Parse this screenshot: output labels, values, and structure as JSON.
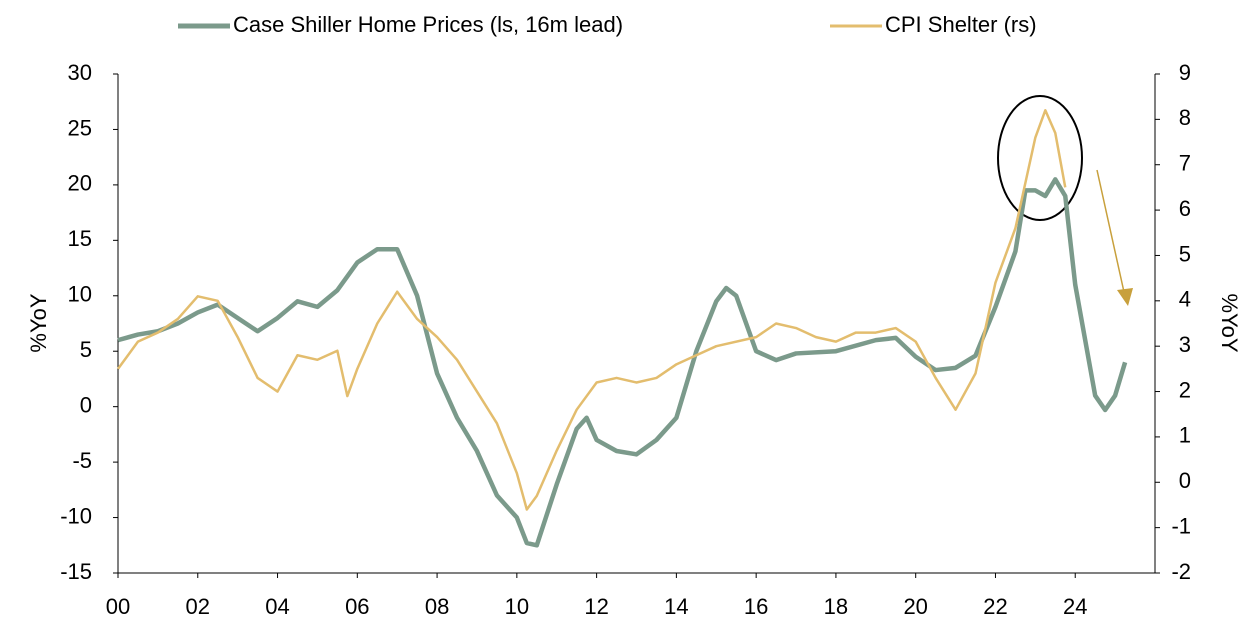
{
  "chart_data": {
    "type": "line",
    "y_label": "%YoY",
    "y2_label": "%YoY",
    "xlim": [
      2000,
      2026
    ],
    "xticks": [
      {
        "value": 2000,
        "label": "00"
      },
      {
        "value": 2002,
        "label": "02"
      },
      {
        "value": 2004,
        "label": "04"
      },
      {
        "value": 2006,
        "label": "06"
      },
      {
        "value": 2008,
        "label": "08"
      },
      {
        "value": 2010,
        "label": "10"
      },
      {
        "value": 2012,
        "label": "12"
      },
      {
        "value": 2014,
        "label": "14"
      },
      {
        "value": 2016,
        "label": "16"
      },
      {
        "value": 2018,
        "label": "18"
      },
      {
        "value": 2020,
        "label": "20"
      },
      {
        "value": 2022,
        "label": "22"
      },
      {
        "value": 2024,
        "label": "24"
      }
    ],
    "ylim": [
      -15,
      30
    ],
    "yticks": [
      -15,
      -10,
      -5,
      0,
      5,
      10,
      15,
      20,
      25,
      30
    ],
    "y2lim": [
      -2,
      9
    ],
    "y2ticks": [
      -2,
      -1,
      0,
      1,
      2,
      3,
      4,
      5,
      6,
      7,
      8,
      9
    ],
    "grid": false,
    "legend": "top",
    "series": [
      {
        "name": "Case Shiller Home Prices (ls, 16m lead)",
        "color": "#7b9a8b",
        "axis": "y",
        "x": [
          2000,
          2000.5,
          2001,
          2001.5,
          2002,
          2002.5,
          2003,
          2003.5,
          2004,
          2004.5,
          2005,
          2005.5,
          2006,
          2006.5,
          2007,
          2007.5,
          2008,
          2008.5,
          2009,
          2009.5,
          2010,
          2010.25,
          2010.5,
          2011,
          2011.5,
          2011.75,
          2012,
          2012.5,
          2013,
          2013.5,
          2014,
          2014.5,
          2015,
          2015.25,
          2015.5,
          2016,
          2016.5,
          2017,
          2018,
          2019,
          2019.5,
          2020,
          2020.5,
          2021,
          2021.5,
          2022,
          2022.5,
          2022.75,
          2023,
          2023.25,
          2023.5,
          2023.75,
          2024,
          2024.5,
          2024.75,
          2025,
          2025.25
        ],
        "values": [
          6,
          6.5,
          6.8,
          7.5,
          8.5,
          9.2,
          8,
          6.8,
          8,
          9.5,
          9,
          10.5,
          13,
          14.2,
          14.2,
          10,
          3,
          -1,
          -4,
          -8,
          -10,
          -12.3,
          -12.5,
          -7,
          -2,
          -1,
          -3,
          -4,
          -4.3,
          -3,
          -1,
          5,
          9.5,
          10.7,
          10,
          5,
          4.2,
          4.8,
          5,
          6,
          6.2,
          4.5,
          3.3,
          3.5,
          4.6,
          9,
          14,
          19.5,
          19.5,
          19,
          20.5,
          19,
          11,
          1,
          -0.3,
          1,
          4
        ]
      },
      {
        "name": "CPI Shelter (rs)",
        "color": "#e3bd6e",
        "axis": "y2",
        "x": [
          2000,
          2000.5,
          2001,
          2001.5,
          2002,
          2002.5,
          2003,
          2003.5,
          2004,
          2004.5,
          2005,
          2005.5,
          2005.75,
          2006,
          2006.5,
          2007,
          2007.5,
          2008,
          2008.5,
          2009,
          2009.5,
          2010,
          2010.25,
          2010.5,
          2011,
          2011.5,
          2012,
          2012.5,
          2013,
          2013.5,
          2014,
          2014.5,
          2015,
          2016,
          2016.5,
          2017,
          2017.5,
          2018,
          2018.5,
          2019,
          2019.5,
          2020,
          2020.5,
          2021,
          2021.5,
          2022,
          2022.5,
          2023,
          2023.25,
          2023.5,
          2023.75
        ],
        "values": [
          2.5,
          3.1,
          3.3,
          3.6,
          4.1,
          4,
          3.2,
          2.3,
          2,
          2.8,
          2.7,
          2.9,
          1.9,
          2.5,
          3.5,
          4.2,
          3.6,
          3.2,
          2.7,
          2,
          1.3,
          0.2,
          -0.6,
          -0.3,
          0.7,
          1.6,
          2.2,
          2.3,
          2.2,
          2.3,
          2.6,
          2.8,
          3,
          3.2,
          3.5,
          3.4,
          3.2,
          3.1,
          3.3,
          3.3,
          3.4,
          3.1,
          2.3,
          1.6,
          2.4,
          4.4,
          5.6,
          7.6,
          8.2,
          7.7,
          6.5
        ]
      }
    ]
  }
}
